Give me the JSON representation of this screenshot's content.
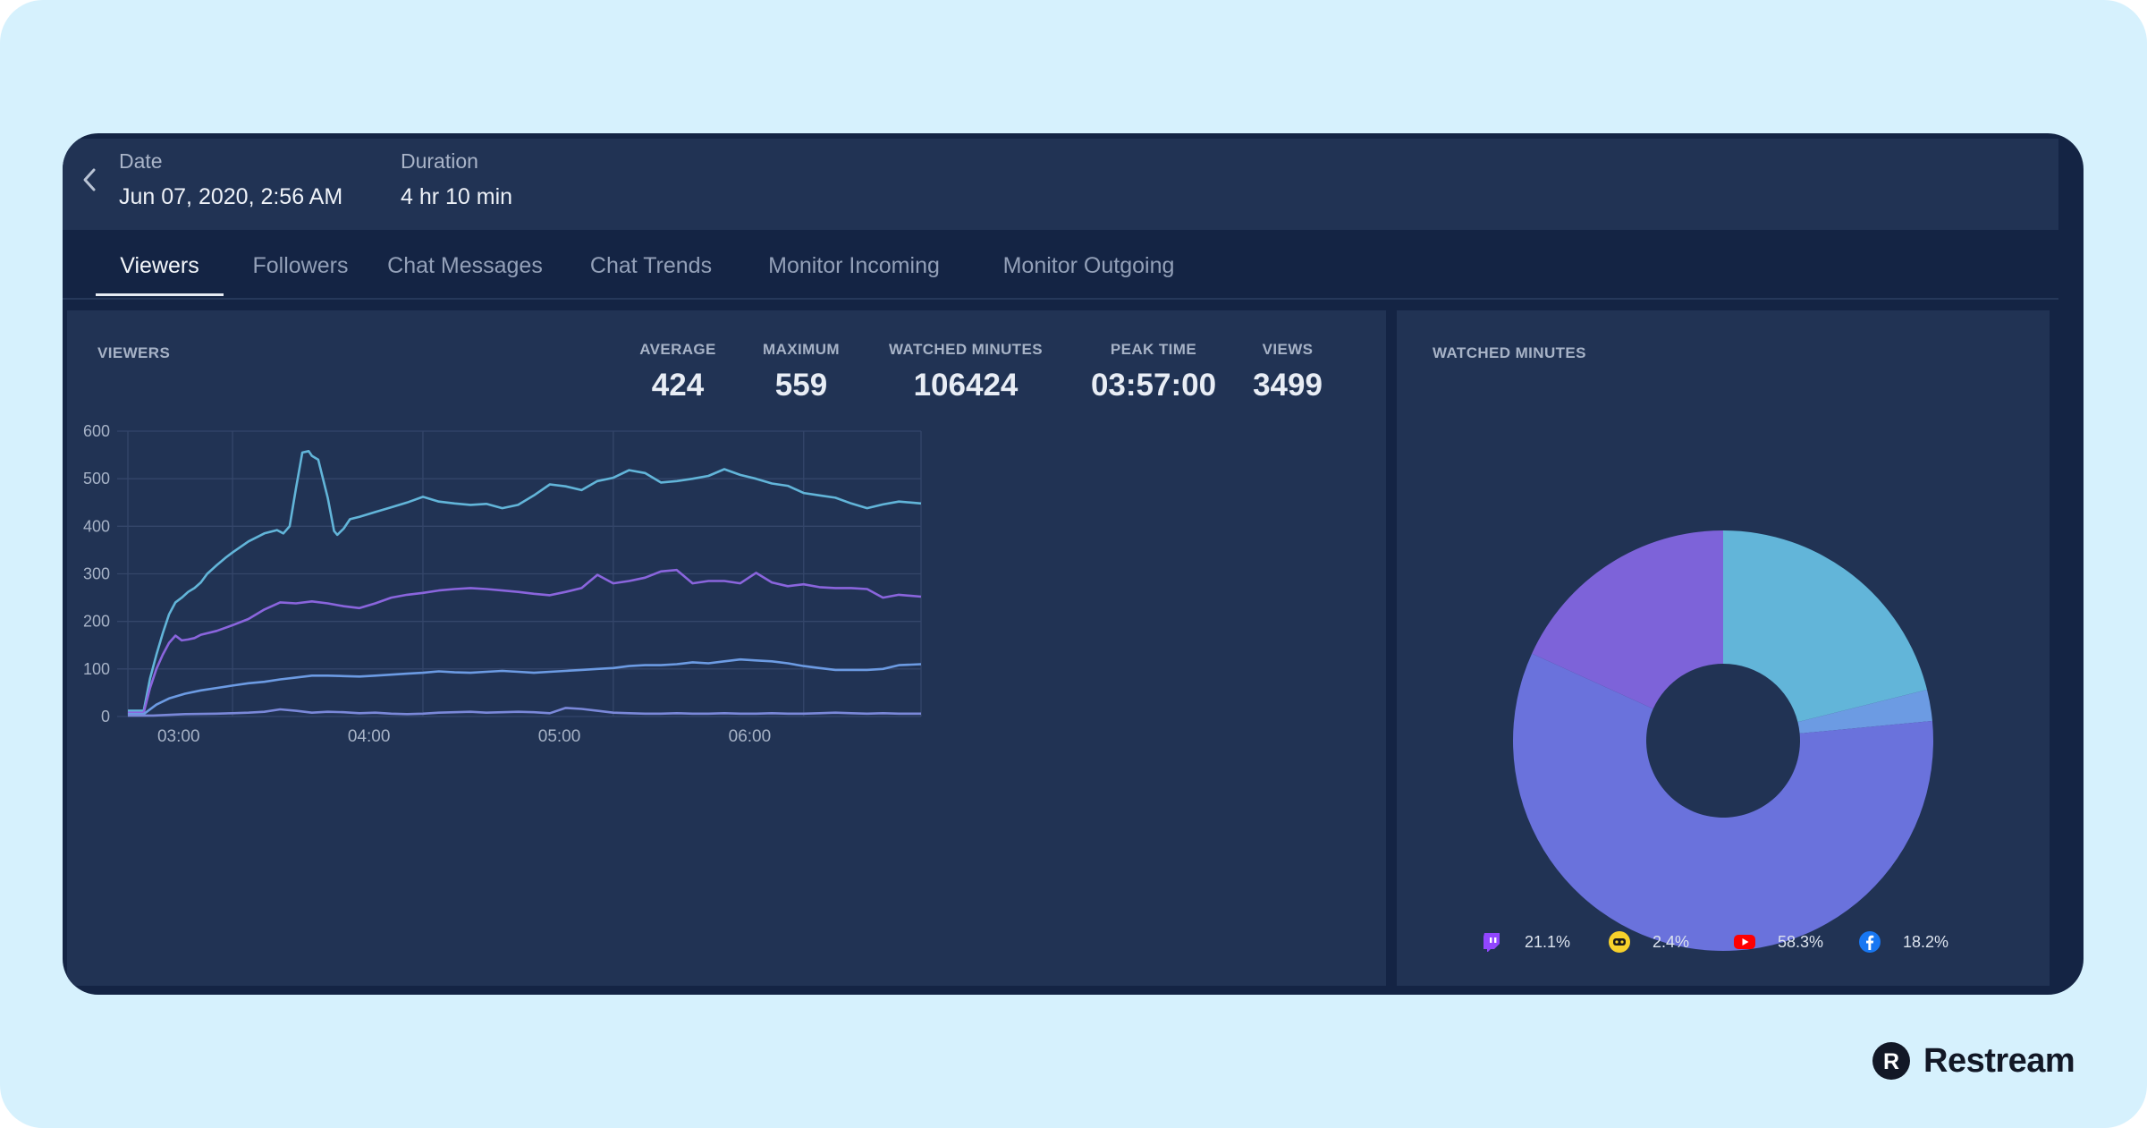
{
  "header": {
    "date_label": "Date",
    "date_value": "Jun 07, 2020, 2:56 AM",
    "duration_label": "Duration",
    "duration_value": "4 hr 10 min"
  },
  "tabs": [
    {
      "label": "Viewers",
      "active": true
    },
    {
      "label": "Followers",
      "active": false
    },
    {
      "label": "Chat Messages",
      "active": false
    },
    {
      "label": "Chat Trends",
      "active": false
    },
    {
      "label": "Monitor Incoming",
      "active": false
    },
    {
      "label": "Monitor Outgoing",
      "active": false
    }
  ],
  "viewers_card": {
    "title": "VIEWERS",
    "stats": [
      {
        "label": "AVERAGE",
        "value": "424"
      },
      {
        "label": "MAXIMUM",
        "value": "559"
      },
      {
        "label": "WATCHED MINUTES",
        "value": "106424"
      },
      {
        "label": "PEAK TIME",
        "value": "03:57:00"
      },
      {
        "label": "VIEWS",
        "value": "3499"
      }
    ]
  },
  "watched_card": {
    "title": "WATCHED MINUTES",
    "legend": [
      {
        "icon": "twitch-icon",
        "value": "21.1%"
      },
      {
        "icon": "trovo-icon",
        "value": "2.4%"
      },
      {
        "icon": "youtube-icon",
        "value": "58.3%"
      },
      {
        "icon": "facebook-icon",
        "value": "18.2%"
      }
    ]
  },
  "brand": {
    "name": "Restream",
    "logo_letter": "R"
  },
  "chart_data": [
    {
      "type": "line",
      "title": "",
      "xlabel": "",
      "ylabel": "",
      "x_ticks": [
        "03:00",
        "04:00",
        "05:00",
        "06:00"
      ],
      "y_ticks": [
        0,
        100,
        200,
        300,
        400,
        500,
        600
      ],
      "xlim": [
        "02:27",
        "06:37"
      ],
      "ylim": [
        0,
        600
      ],
      "grid": true,
      "series": [
        {
          "color": "#62b5d9",
          "x": [
            "02:27",
            "02:32",
            "02:34",
            "02:36",
            "02:38",
            "02:40",
            "02:42",
            "02:44",
            "02:46",
            "02:48",
            "02:50",
            "02:52",
            "02:55",
            "02:58",
            "03:00",
            "03:05",
            "03:10",
            "03:14",
            "03:16",
            "03:18",
            "03:20",
            "03:22",
            "03:24",
            "03:25",
            "03:27",
            "03:30",
            "03:32",
            "03:33",
            "03:35",
            "03:37",
            "03:40",
            "03:45",
            "03:50",
            "03:55",
            "04:00",
            "04:05",
            "04:10",
            "04:15",
            "04:20",
            "04:25",
            "04:30",
            "04:35",
            "04:40",
            "04:45",
            "04:50",
            "04:55",
            "05:00",
            "05:05",
            "05:10",
            "05:15",
            "05:20",
            "05:25",
            "05:30",
            "05:35",
            "05:40",
            "05:45",
            "05:50",
            "05:55",
            "06:00",
            "06:05",
            "06:10",
            "06:15",
            "06:20",
            "06:25",
            "06:30",
            "06:37"
          ],
          "y": [
            12,
            12,
            80,
            130,
            175,
            215,
            240,
            250,
            262,
            270,
            282,
            300,
            318,
            335,
            345,
            368,
            385,
            392,
            385,
            400,
            480,
            555,
            558,
            548,
            540,
            460,
            390,
            382,
            395,
            415,
            420,
            430,
            440,
            450,
            462,
            452,
            448,
            445,
            447,
            438,
            445,
            465,
            488,
            484,
            476,
            495,
            502,
            518,
            512,
            492,
            495,
            500,
            506,
            520,
            508,
            500,
            490,
            485,
            470,
            465,
            460,
            448,
            438,
            446,
            452,
            448
          ]
        },
        {
          "color": "#8a65dd",
          "x": [
            "02:27",
            "02:32",
            "02:34",
            "02:36",
            "02:38",
            "02:40",
            "02:42",
            "02:44",
            "02:46",
            "02:48",
            "02:50",
            "02:55",
            "03:00",
            "03:05",
            "03:10",
            "03:15",
            "03:20",
            "03:25",
            "03:30",
            "03:35",
            "03:40",
            "03:45",
            "03:50",
            "03:55",
            "04:00",
            "04:05",
            "04:10",
            "04:15",
            "04:20",
            "04:25",
            "04:30",
            "04:35",
            "04:40",
            "04:45",
            "04:50",
            "04:55",
            "05:00",
            "05:05",
            "05:10",
            "05:15",
            "05:20",
            "05:25",
            "05:30",
            "05:35",
            "05:40",
            "05:45",
            "05:50",
            "05:55",
            "06:00",
            "06:05",
            "06:10",
            "06:15",
            "06:20",
            "06:25",
            "06:30",
            "06:37"
          ],
          "y": [
            8,
            8,
            60,
            100,
            130,
            155,
            170,
            160,
            162,
            165,
            172,
            180,
            192,
            205,
            225,
            240,
            238,
            242,
            238,
            232,
            228,
            238,
            250,
            256,
            260,
            265,
            268,
            270,
            268,
            265,
            262,
            258,
            255,
            262,
            270,
            298,
            280,
            285,
            292,
            305,
            308,
            280,
            285,
            285,
            280,
            302,
            282,
            274,
            278,
            272,
            270,
            270,
            268,
            250,
            256,
            252
          ]
        },
        {
          "color": "#6c9be3",
          "x": [
            "02:27",
            "02:32",
            "02:36",
            "02:40",
            "02:45",
            "02:50",
            "02:55",
            "03:00",
            "03:05",
            "03:10",
            "03:15",
            "03:20",
            "03:25",
            "03:30",
            "03:35",
            "03:40",
            "03:45",
            "03:50",
            "03:55",
            "04:00",
            "04:05",
            "04:10",
            "04:15",
            "04:20",
            "04:25",
            "04:30",
            "04:35",
            "04:40",
            "04:45",
            "04:50",
            "04:55",
            "05:00",
            "05:05",
            "05:10",
            "05:15",
            "05:20",
            "05:25",
            "05:30",
            "05:35",
            "05:40",
            "05:45",
            "05:50",
            "05:55",
            "06:00",
            "06:05",
            "06:10",
            "06:15",
            "06:20",
            "06:25",
            "06:30",
            "06:37"
          ],
          "y": [
            5,
            5,
            25,
            38,
            48,
            55,
            60,
            65,
            70,
            73,
            78,
            82,
            86,
            86,
            85,
            84,
            86,
            88,
            90,
            92,
            95,
            93,
            92,
            94,
            96,
            94,
            92,
            94,
            96,
            98,
            100,
            102,
            106,
            108,
            108,
            110,
            114,
            112,
            116,
            120,
            118,
            116,
            112,
            106,
            102,
            98,
            98,
            98,
            100,
            108,
            110
          ]
        },
        {
          "color": "#7a88d9",
          "x": [
            "02:27",
            "02:35",
            "02:45",
            "02:55",
            "03:00",
            "03:05",
            "03:10",
            "03:15",
            "03:20",
            "03:25",
            "03:30",
            "03:35",
            "03:40",
            "03:45",
            "03:50",
            "03:55",
            "04:00",
            "04:05",
            "04:10",
            "04:15",
            "04:20",
            "04:25",
            "04:30",
            "04:35",
            "04:40",
            "04:45",
            "04:50",
            "04:55",
            "05:00",
            "05:05",
            "05:10",
            "05:15",
            "05:20",
            "05:25",
            "05:30",
            "05:35",
            "05:40",
            "05:45",
            "05:50",
            "05:55",
            "06:00",
            "06:05",
            "06:10",
            "06:15",
            "06:20",
            "06:25",
            "06:30",
            "06:37"
          ],
          "y": [
            2,
            2,
            5,
            6,
            7,
            8,
            10,
            15,
            12,
            8,
            10,
            9,
            7,
            8,
            6,
            5,
            6,
            8,
            9,
            10,
            8,
            9,
            10,
            9,
            7,
            18,
            16,
            12,
            8,
            7,
            6,
            6,
            7,
            6,
            6,
            7,
            6,
            6,
            7,
            6,
            6,
            7,
            8,
            7,
            6,
            7,
            6,
            6
          ]
        }
      ]
    },
    {
      "type": "pie",
      "title": "",
      "colors": [
        "#62b5d9",
        "#6c9be3",
        "#6a72dc",
        "#7d63d9"
      ],
      "values": [
        21.1,
        2.4,
        58.3,
        18.2
      ],
      "categories": [
        "twitch-icon",
        "trovo-icon",
        "youtube-icon",
        "facebook-icon"
      ]
    }
  ]
}
